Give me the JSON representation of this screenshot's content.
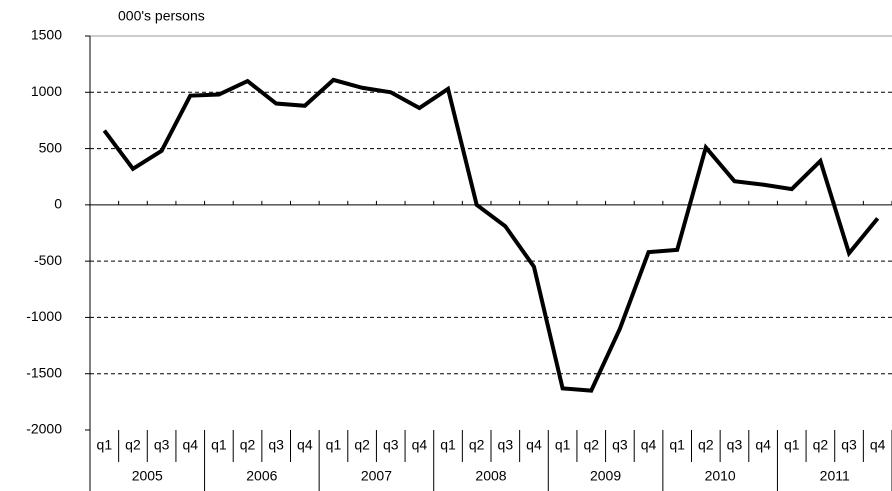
{
  "chart_data": {
    "type": "line",
    "y_label": "000's persons",
    "categories": [
      "q1",
      "q2",
      "q3",
      "q4",
      "q1",
      "q2",
      "q3",
      "q4",
      "q1",
      "q2",
      "q3",
      "q4",
      "q1",
      "q2",
      "q3",
      "q4",
      "q1",
      "q2",
      "q3",
      "q4",
      "q1",
      "q2",
      "q3",
      "q4",
      "q1",
      "q2",
      "q3",
      "q4"
    ],
    "years": [
      "2005",
      "2006",
      "2007",
      "2008",
      "2009",
      "2010",
      "2011"
    ],
    "series": [
      {
        "color": "#000000",
        "values": [
          660,
          320,
          480,
          970,
          980,
          1100,
          900,
          880,
          1110,
          1040,
          1000,
          860,
          1030,
          0,
          -190,
          -550,
          -1630,
          -1650,
          -1100,
          -420,
          -400,
          510,
          210,
          180,
          140,
          390,
          -430,
          -120
        ]
      }
    ],
    "ylim": [
      -2000,
      1500
    ],
    "yticks": [
      -2000,
      -1500,
      -1000,
      -500,
      0,
      500,
      1000,
      1500
    ],
    "grid": true
  }
}
